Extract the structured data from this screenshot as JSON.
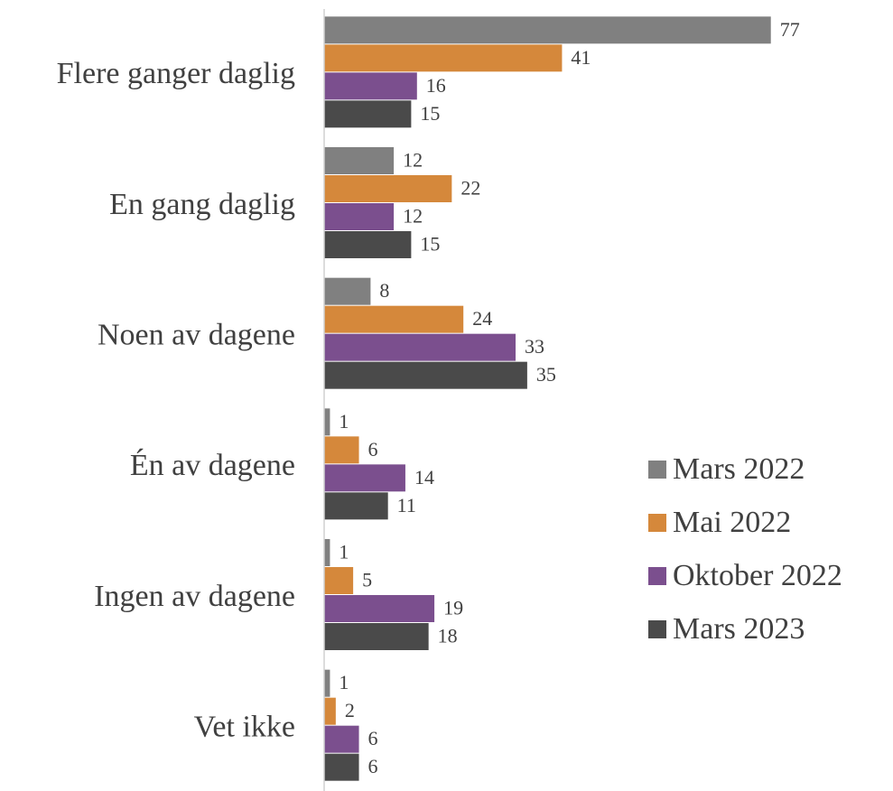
{
  "chart_data": {
    "type": "bar",
    "orientation": "horizontal",
    "categories": [
      "Flere ganger daglig",
      "En gang daglig",
      "Noen av dagene",
      "Én av dagene",
      "Ingen av dagene",
      "Vet ikke"
    ],
    "series": [
      {
        "name": "Mars 2022",
        "color": "#808080",
        "values": [
          77,
          12,
          8,
          1,
          1,
          1
        ]
      },
      {
        "name": "Mai 2022",
        "color": "#d5883b",
        "values": [
          41,
          22,
          24,
          6,
          5,
          2
        ]
      },
      {
        "name": "Oktober 2022",
        "color": "#7b4f8e",
        "values": [
          16,
          12,
          33,
          14,
          19,
          6
        ]
      },
      {
        "name": "Mars 2023",
        "color": "#4a4a4a",
        "values": [
          15,
          15,
          35,
          11,
          18,
          6
        ]
      }
    ],
    "xlim": [
      0,
      80
    ],
    "legend": "right",
    "data_labels": true
  }
}
